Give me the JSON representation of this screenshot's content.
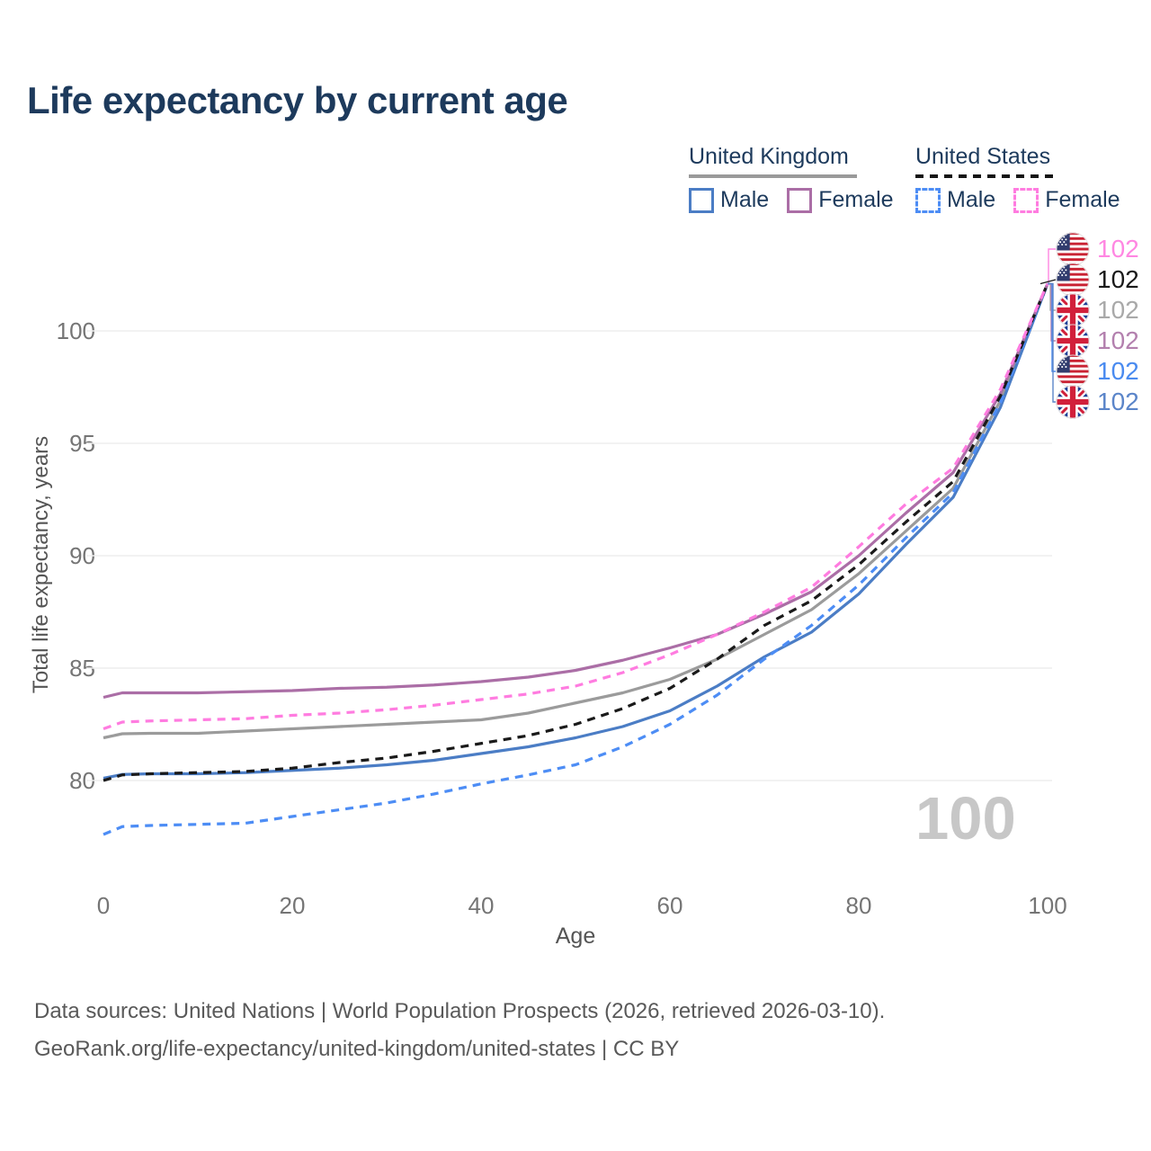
{
  "title": "Life expectancy by current age",
  "watermark": "100",
  "legend": {
    "groups": [
      {
        "label": "United Kingdom",
        "underline": {
          "style": "solid",
          "color": "#9a9a9a"
        },
        "items": [
          {
            "label": "Male"
          },
          {
            "label": "Female"
          }
        ]
      },
      {
        "label": "United States",
        "underline": {
          "style": "dashed",
          "color": "#151515"
        },
        "items": [
          {
            "label": "Male"
          },
          {
            "label": "Female"
          }
        ]
      }
    ]
  },
  "chart_data": {
    "type": "line",
    "title": "Life expectancy by current age",
    "xlabel": "Age",
    "ylabel": "Total life expectancy, years",
    "xticks": [
      0,
      20,
      40,
      60,
      80,
      100
    ],
    "yticks": [
      80,
      85,
      90,
      95,
      100
    ],
    "xlim": [
      0,
      100
    ],
    "ylim": [
      77,
      103
    ],
    "grid": "horizontal",
    "legend_position": "top-right",
    "ages": [
      0,
      2,
      5,
      10,
      15,
      20,
      25,
      30,
      35,
      40,
      45,
      50,
      55,
      60,
      65,
      70,
      75,
      80,
      85,
      90,
      95,
      100
    ],
    "series": [
      {
        "id": "uk-all",
        "name": "United Kingdom",
        "sex": "Both",
        "color": "#9b9b9b",
        "dash": false,
        "values": [
          81.9,
          82.08,
          82.1,
          82.1,
          82.2,
          82.3,
          82.4,
          82.5,
          82.6,
          82.7,
          83.0,
          83.45,
          83.9,
          84.5,
          85.4,
          86.5,
          87.6,
          89.2,
          91.1,
          93.0,
          96.9,
          102.1
        ]
      },
      {
        "id": "uk-male",
        "name": "United Kingdom Male",
        "sex": "Male",
        "color": "#4b7dc5",
        "dash": false,
        "values": [
          80.1,
          80.27,
          80.3,
          80.3,
          80.35,
          80.45,
          80.55,
          80.7,
          80.9,
          81.2,
          81.5,
          81.9,
          82.4,
          83.1,
          84.2,
          85.5,
          86.6,
          88.3,
          90.5,
          92.6,
          96.6,
          102.1
        ]
      },
      {
        "id": "uk-female",
        "name": "United Kingdom Female",
        "sex": "Female",
        "color": "#ab6ea6",
        "dash": false,
        "values": [
          83.7,
          83.9,
          83.9,
          83.9,
          83.95,
          84.0,
          84.1,
          84.15,
          84.25,
          84.4,
          84.6,
          84.9,
          85.35,
          85.9,
          86.5,
          87.4,
          88.4,
          90.0,
          91.9,
          93.7,
          97.2,
          102.1
        ]
      },
      {
        "id": "us-male",
        "name": "United States Male",
        "sex": "Male",
        "color": "#4d8df5",
        "dash": true,
        "values": [
          77.6,
          77.95,
          78.0,
          78.05,
          78.1,
          78.4,
          78.7,
          79.0,
          79.4,
          79.85,
          80.25,
          80.7,
          81.5,
          82.5,
          83.8,
          85.4,
          86.9,
          88.7,
          90.8,
          92.8,
          96.8,
          102.1
        ]
      },
      {
        "id": "us-all",
        "name": "United States",
        "sex": "Both",
        "color": "#1a1a1a",
        "dash": true,
        "values": [
          80.0,
          80.25,
          80.3,
          80.35,
          80.4,
          80.55,
          80.8,
          81.0,
          81.3,
          81.65,
          82.0,
          82.5,
          83.2,
          84.1,
          85.4,
          86.9,
          88.0,
          89.6,
          91.5,
          93.3,
          97.1,
          102.1
        ]
      },
      {
        "id": "us-female",
        "name": "United States Female",
        "sex": "Female",
        "color": "#ff7ce0",
        "dash": true,
        "values": [
          82.3,
          82.6,
          82.65,
          82.7,
          82.75,
          82.9,
          83.0,
          83.15,
          83.35,
          83.6,
          83.85,
          84.2,
          84.8,
          85.6,
          86.5,
          87.5,
          88.6,
          90.4,
          92.3,
          93.9,
          97.4,
          102.1
        ]
      }
    ],
    "annotations": [
      {
        "flag": "us",
        "value": "102",
        "color": "#ff87e2"
      },
      {
        "flag": "us",
        "value": "102",
        "color": "#1a1a1a"
      },
      {
        "flag": "uk",
        "value": "102",
        "color": "#a9a9a9"
      },
      {
        "flag": "uk",
        "value": "102",
        "color": "#b380ae"
      },
      {
        "flag": "us",
        "value": "102",
        "color": "#4a8bf0"
      },
      {
        "flag": "uk",
        "value": "102",
        "color": "#5b85c9"
      }
    ]
  },
  "footer": {
    "line1": "Data sources: United Nations | World Population Prospects (2026, retrieved 2026-03-10).",
    "line2": "GeoRank.org/life-expectancy/united-kingdom/united-states | CC BY"
  }
}
